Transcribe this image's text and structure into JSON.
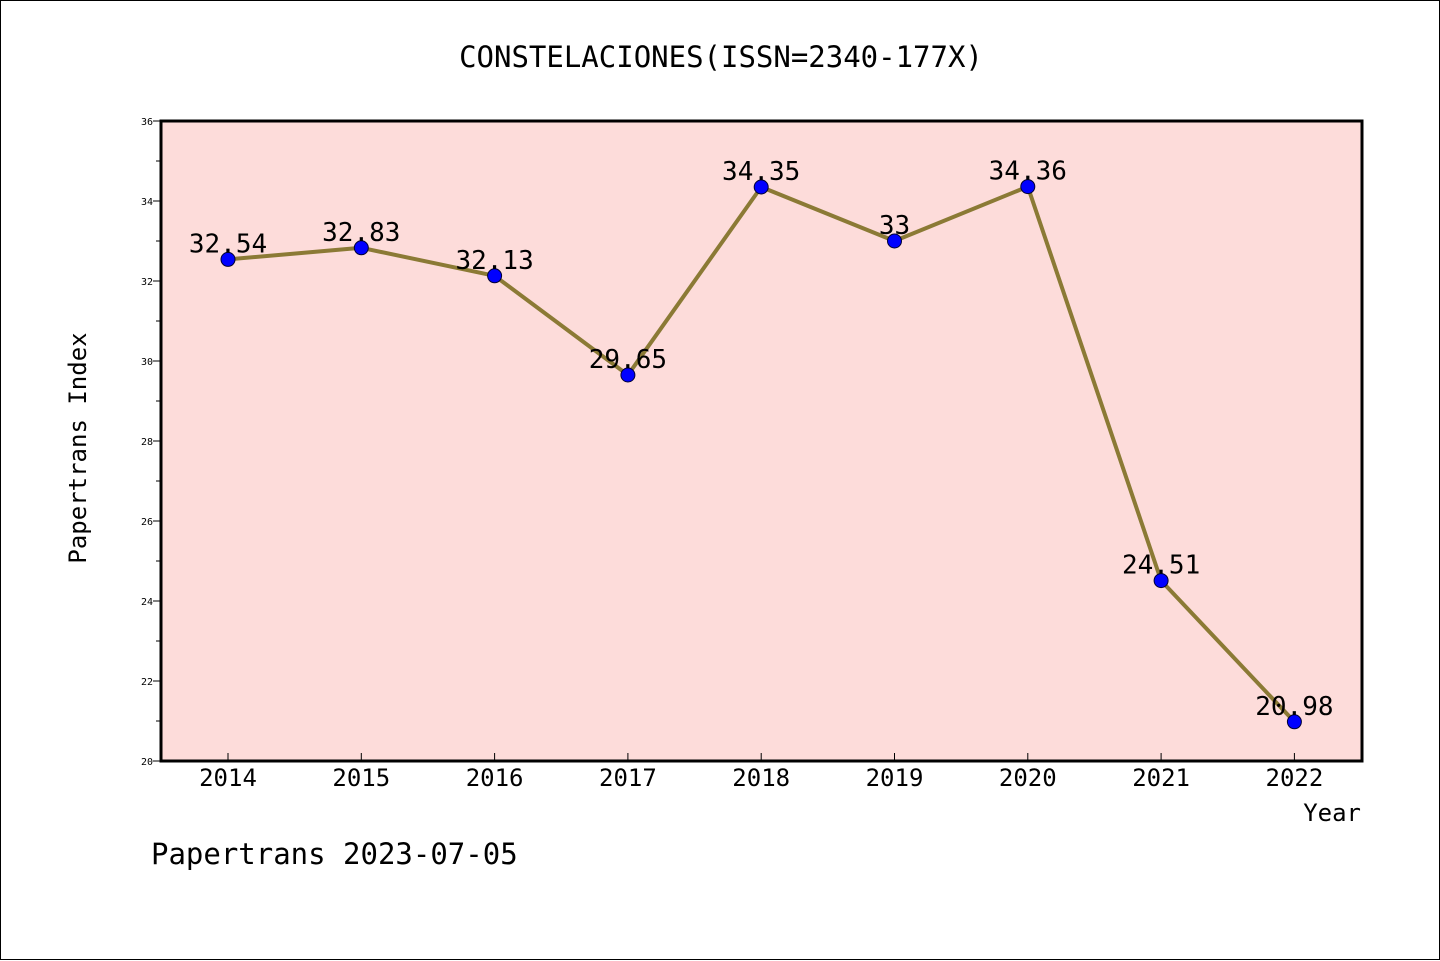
{
  "chart_data": {
    "type": "line",
    "title": "CONSTELACIONES(ISSN=2340-177X)",
    "xlabel": "Year",
    "ylabel": "Papertrans Index",
    "x": [
      "2014",
      "2015",
      "2016",
      "2017",
      "2018",
      "2019",
      "2020",
      "2021",
      "2022"
    ],
    "series": [
      {
        "values": [
          32.54,
          32.83,
          32.13,
          29.65,
          34.35,
          33,
          34.36,
          24.51,
          20.98
        ],
        "labels": [
          "32.54",
          "32.83",
          "32.13",
          "29.65",
          "34.35",
          "33",
          "34.36",
          "24.51",
          "20.98"
        ]
      }
    ],
    "ylim": [
      20,
      36
    ],
    "yticks": [
      "20",
      "22",
      "24",
      "26",
      "28",
      "30",
      "32",
      "34",
      "36"
    ],
    "grid": false,
    "colors": {
      "plot_background": "#fddcda",
      "line": "#8b7a35",
      "marker": "#0000ff"
    }
  },
  "footer": "Papertrans 2023-07-05"
}
